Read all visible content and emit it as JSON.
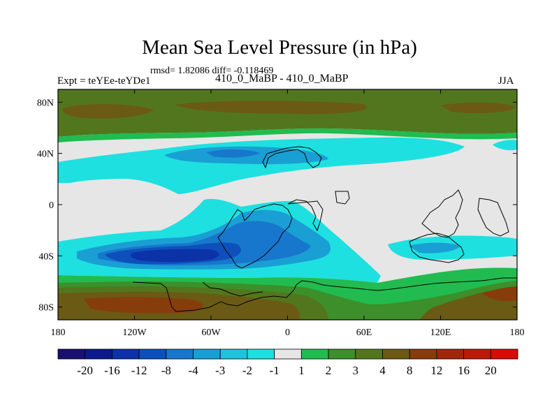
{
  "chart_data": {
    "type": "filled-contour-map",
    "title": "Mean Sea Level Pressure (in hPa)",
    "stats_text": "rmsd= 1.82086 diff= -0.118469",
    "subtitle": "410_0_MaBP - 410_0_MaBP",
    "experiment_label": "Expt = teYEe-teYDe1",
    "season": "JJA",
    "x_axis": {
      "range": [
        -180,
        180
      ],
      "ticks": [
        {
          "value": -180,
          "label": "180"
        },
        {
          "value": -120,
          "label": "120W"
        },
        {
          "value": -60,
          "label": "60W"
        },
        {
          "value": 0,
          "label": "0"
        },
        {
          "value": 60,
          "label": "60E"
        },
        {
          "value": 120,
          "label": "120E"
        },
        {
          "value": 180,
          "label": "180"
        }
      ]
    },
    "y_axis": {
      "range": [
        -90,
        90
      ],
      "ticks": [
        {
          "value": 80,
          "label": "80N"
        },
        {
          "value": 40,
          "label": "40N"
        },
        {
          "value": 0,
          "label": "0"
        },
        {
          "value": -40,
          "label": "40S"
        },
        {
          "value": -80,
          "label": "80S"
        }
      ]
    },
    "colorbar": {
      "levels": [
        "-20",
        "-16",
        "-12",
        "-8",
        "-4",
        "-3",
        "-2",
        "-1",
        "1",
        "2",
        "3",
        "4",
        "8",
        "12",
        "16",
        "20"
      ],
      "colors": [
        "#190f6e",
        "#0a1a8c",
        "#0c32a8",
        "#0e50bb",
        "#1777cc",
        "#1a9fd4",
        "#20c2dc",
        "#1ee0e0",
        "#e6e6e6",
        "#22bb50",
        "#3c8f2a",
        "#52761e",
        "#6a5a14",
        "#873c0c",
        "#a2260a",
        "#bb1a08",
        "#d80c04"
      ]
    },
    "regions": [
      {
        "name": "arctic",
        "sign": "positive",
        "level": "4-12"
      },
      {
        "name": "northern-midlatitudes",
        "sign": "positive",
        "level": "1-2"
      },
      {
        "name": "north-pacific-band",
        "sign": "negative",
        "level": "-3 to -1"
      },
      {
        "name": "tropics",
        "sign": "near-zero",
        "level": "-1 to 1"
      },
      {
        "name": "south-pacific-trough",
        "sign": "negative",
        "level": "-16 to -2"
      },
      {
        "name": "southern-indian-band",
        "sign": "negative",
        "level": "-3 to -1"
      },
      {
        "name": "southern-ocean-antarctica",
        "sign": "positive",
        "level": "2-12"
      }
    ]
  }
}
